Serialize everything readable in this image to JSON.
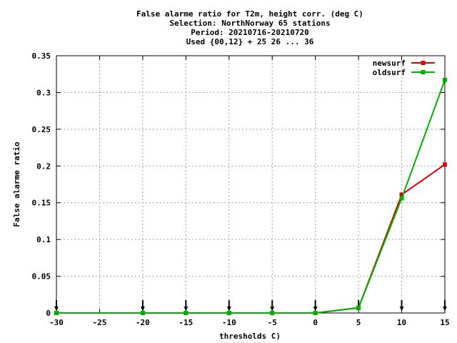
{
  "chart_data": {
    "type": "line",
    "title_lines": [
      "False alarme ratio  for T2m, height corr. (deg C)",
      "Selection: NorthNorway     65 stations",
      "Period: 20210716-20210720",
      "Used {00,12} + 25 26 ... 36"
    ],
    "xlabel": "thresholds C)",
    "ylabel": "False alarme ratio",
    "xlim": [
      -30,
      15
    ],
    "ylim": [
      0,
      0.35
    ],
    "xticks": [
      -30,
      -25,
      -20,
      -15,
      -10,
      -5,
      0,
      5,
      10,
      15
    ],
    "xtick_labels": [
      "-30",
      "-25",
      "-20",
      "-15",
      "-10",
      "-5",
      "0",
      "5",
      "10",
      "15"
    ],
    "yticks": [
      0,
      0.05,
      0.1,
      0.15,
      0.2,
      0.25,
      0.3,
      0.35
    ],
    "ytick_labels": [
      "0",
      "0.05",
      "0.1",
      "0.15",
      "0.2",
      "0.25",
      "0.3",
      "0.35"
    ],
    "grid": true,
    "legend_position": "top-right",
    "x": [
      -30,
      -20,
      -15,
      -10,
      -5,
      0,
      5,
      10,
      15
    ],
    "series": [
      {
        "name": "newsurf",
        "color": "#e00000",
        "values": [
          0,
          0,
          0,
          0,
          0,
          0,
          0.007,
          0.161,
          0.202
        ]
      },
      {
        "name": "oldsurf",
        "color": "#00b000",
        "values": [
          0,
          0,
          0,
          0,
          0,
          0,
          0.007,
          0.156,
          0.317
        ]
      }
    ],
    "marker_x": [
      -30,
      -20,
      -15,
      -10,
      -5,
      0,
      5,
      10,
      15
    ]
  }
}
